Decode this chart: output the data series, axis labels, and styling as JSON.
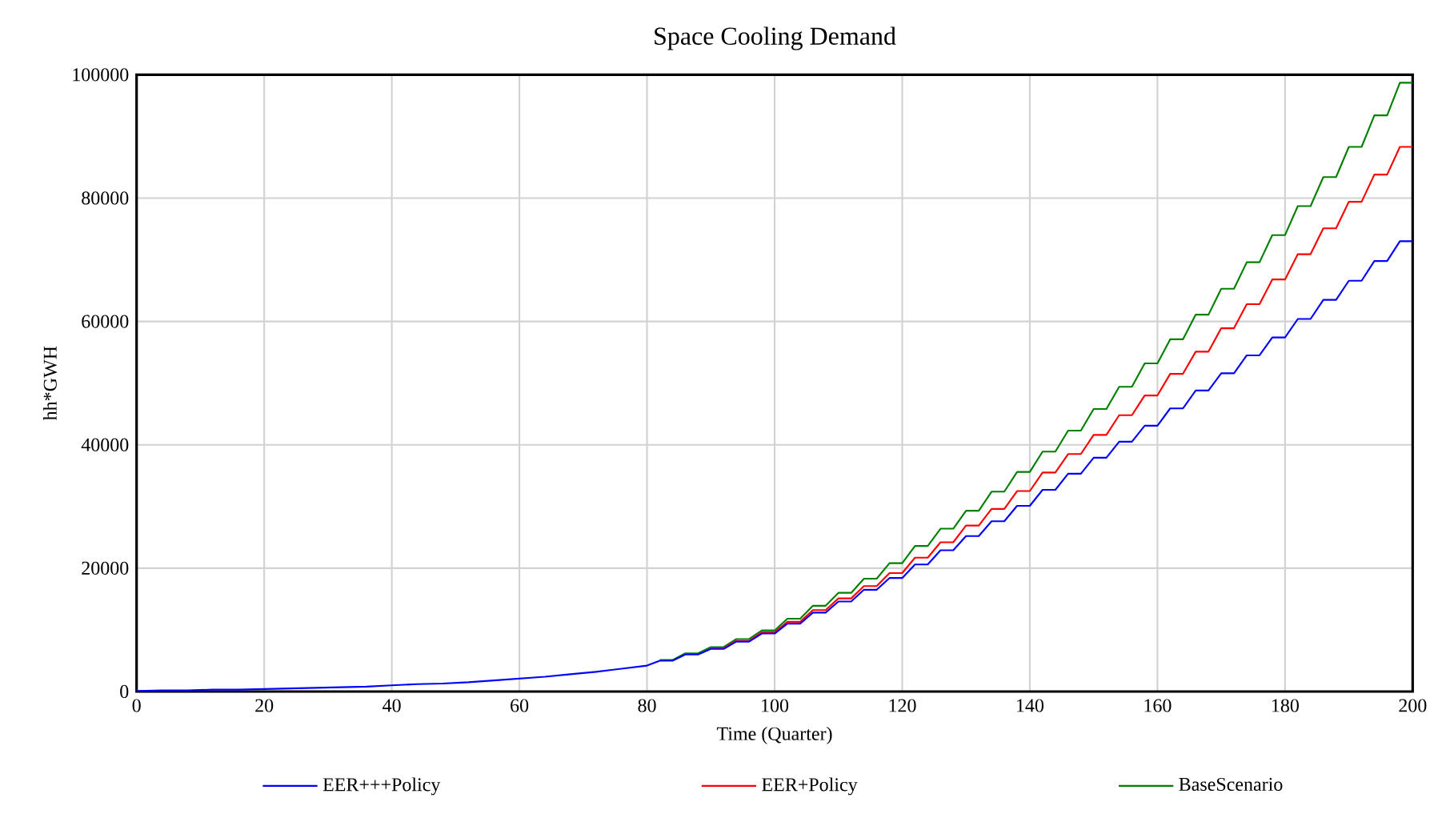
{
  "chart_data": {
    "type": "line",
    "title": "Space Cooling Demand",
    "xlabel": "Time (Quarter)",
    "ylabel": "hh*GWH",
    "x": [
      0,
      4,
      8,
      12,
      16,
      20,
      24,
      28,
      32,
      36,
      40,
      44,
      48,
      52,
      56,
      60,
      64,
      68,
      72,
      76,
      80,
      82,
      84,
      86,
      88,
      90,
      92,
      94,
      96,
      98,
      100,
      102,
      104,
      106,
      108,
      110,
      112,
      114,
      116,
      118,
      120,
      122,
      124,
      126,
      128,
      130,
      132,
      134,
      136,
      138,
      140,
      142,
      144,
      146,
      148,
      150,
      152,
      154,
      156,
      158,
      160,
      162,
      164,
      166,
      168,
      170,
      172,
      174,
      176,
      178,
      180,
      182,
      184,
      186,
      188,
      190,
      192,
      194,
      196,
      198,
      200
    ],
    "series": [
      {
        "name": "EER+++Policy",
        "color": "#0000ff",
        "values": [
          100,
          200,
          200,
          300,
          300,
          400,
          500,
          600,
          700,
          800,
          1000,
          1200,
          1300,
          1500,
          1800,
          2100,
          2400,
          2800,
          3200,
          3700,
          4200,
          5000,
          5000,
          6000,
          6000,
          6900,
          6900,
          8100,
          8100,
          9400,
          9400,
          11000,
          11000,
          12800,
          12800,
          14600,
          14600,
          16500,
          16500,
          18400,
          18400,
          20600,
          20600,
          22900,
          22900,
          25200,
          25200,
          27600,
          27600,
          30100,
          30100,
          32700,
          32700,
          35300,
          35300,
          37900,
          37900,
          40500,
          40500,
          43100,
          43100,
          45900,
          45900,
          48800,
          48800,
          51600,
          51600,
          54500,
          54500,
          57400,
          57400,
          60400,
          60400,
          63500,
          63500,
          66600,
          66600,
          69800,
          69800,
          73000,
          73000
        ]
      },
      {
        "name": "EER+Policy",
        "color": "#ff0000",
        "values": [
          null,
          null,
          null,
          null,
          null,
          null,
          null,
          null,
          null,
          null,
          null,
          null,
          null,
          null,
          null,
          null,
          null,
          null,
          null,
          null,
          null,
          null,
          null,
          null,
          null,
          7000,
          7000,
          8200,
          8200,
          9600,
          9600,
          11300,
          11300,
          13200,
          13200,
          15100,
          15100,
          17100,
          17100,
          19200,
          19200,
          21700,
          21700,
          24200,
          24200,
          26900,
          26900,
          29600,
          29600,
          32500,
          32500,
          35500,
          35500,
          38500,
          38500,
          41600,
          41600,
          44800,
          44800,
          48000,
          48000,
          51500,
          51500,
          55100,
          55100,
          58900,
          58900,
          62800,
          62800,
          66800,
          66800,
          70900,
          70900,
          75100,
          75100,
          79400,
          79400,
          83800,
          83800,
          88300,
          88300
        ]
      },
      {
        "name": "BaseScenario",
        "color": "#008000",
        "values": [
          null,
          null,
          null,
          null,
          null,
          null,
          null,
          null,
          null,
          null,
          null,
          null,
          null,
          null,
          null,
          null,
          null,
          null,
          null,
          null,
          null,
          5100,
          5100,
          6200,
          6200,
          7200,
          7200,
          8500,
          8500,
          9900,
          9900,
          11800,
          11800,
          13900,
          13900,
          16000,
          16000,
          18300,
          18300,
          20800,
          20800,
          23600,
          23600,
          26400,
          26400,
          29300,
          29300,
          32400,
          32400,
          35600,
          35600,
          38900,
          38900,
          42300,
          42300,
          45800,
          45800,
          49400,
          49400,
          53200,
          53200,
          57100,
          57100,
          61100,
          61100,
          65300,
          65300,
          69600,
          69600,
          74000,
          74000,
          78700,
          78700,
          83400,
          83400,
          88300,
          88300,
          93400,
          93400,
          98700,
          98700
        ]
      }
    ],
    "xlim": [
      0,
      200
    ],
    "xticks": [
      0,
      20,
      40,
      60,
      80,
      100,
      120,
      140,
      160,
      180,
      200
    ],
    "ylim": [
      0,
      100000
    ],
    "yticks": [
      0,
      20000,
      40000,
      60000,
      80000,
      100000
    ],
    "grid": true,
    "legend": "bottom",
    "marker": "none",
    "line_style": "solid"
  }
}
